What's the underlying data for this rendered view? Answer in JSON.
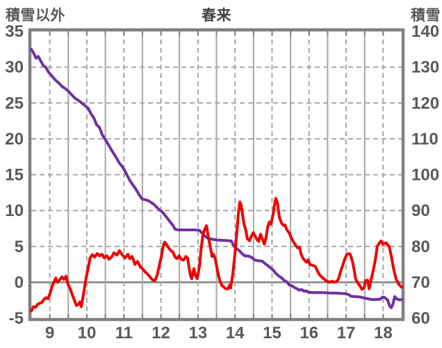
{
  "header": {
    "left_axis_title": "積雪以外",
    "title": "春来",
    "right_axis_title": "積雪"
  },
  "colors": {
    "border": "#808080",
    "gridline": "#a6a6a6",
    "zero_line": "#808080",
    "tick_label": "#595959",
    "series_snow": "#7030a0",
    "series_other": "#ee0000",
    "background": "#ffffff"
  },
  "chart_data": {
    "type": "line",
    "title": "春来",
    "left_axis": {
      "label": "積雪以外",
      "min": -5,
      "max": 35,
      "ticks": [
        35,
        30,
        25,
        20,
        15,
        10,
        5,
        0,
        -5
      ]
    },
    "right_axis": {
      "label": "積雪",
      "min": 60,
      "max": 140,
      "ticks": [
        140,
        130,
        120,
        110,
        100,
        90,
        80,
        70,
        60
      ]
    },
    "x_axis": {
      "labels": [
        "9",
        "10",
        "11",
        "12",
        "13",
        "14",
        "15",
        "16",
        "17",
        "18"
      ],
      "months": 10,
      "note": "u = months elapsed from start of month 9, range 0-10; labels centered at u=k+0.5"
    },
    "grid": {
      "h_gridlines": "dashed every 5 (left axis)",
      "v_solid": "month boundaries",
      "v_dashed": "month midpoints",
      "zero_line": "solid",
      "ticks": "top and bottom edge every half month"
    },
    "legend_position": "none",
    "series": [
      {
        "name": "積雪",
        "axis": "right",
        "color": "#7030a0",
        "points": [
          [
            0,
            135
          ],
          [
            0.06,
            134
          ],
          [
            0.13,
            132.5
          ],
          [
            0.19,
            133
          ],
          [
            0.24,
            132
          ],
          [
            0.32,
            130.5
          ],
          [
            0.39,
            130
          ],
          [
            0.47,
            128.5
          ],
          [
            0.56,
            127.5
          ],
          [
            0.66,
            126.3
          ],
          [
            0.75,
            125.5
          ],
          [
            0.84,
            124.5
          ],
          [
            0.92,
            124
          ],
          [
            1.0,
            123.3
          ],
          [
            1.09,
            122.3
          ],
          [
            1.18,
            121.3
          ],
          [
            1.26,
            120.8
          ],
          [
            1.33,
            120.3
          ],
          [
            1.41,
            119.6
          ],
          [
            1.48,
            119
          ],
          [
            1.54,
            118.5
          ],
          [
            1.61,
            117
          ],
          [
            1.69,
            115.8
          ],
          [
            1.76,
            114
          ],
          [
            1.84,
            113.2
          ],
          [
            1.91,
            111.3
          ],
          [
            2.01,
            109.6
          ],
          [
            2.08,
            108.4
          ],
          [
            2.16,
            107
          ],
          [
            2.23,
            105.8
          ],
          [
            2.31,
            104.5
          ],
          [
            2.38,
            103.2
          ],
          [
            2.46,
            102.2
          ],
          [
            2.51,
            101.4
          ],
          [
            2.59,
            99.8
          ],
          [
            2.66,
            98.4
          ],
          [
            2.74,
            97.2
          ],
          [
            2.81,
            96.2
          ],
          [
            2.89,
            94.8
          ],
          [
            2.95,
            93.8
          ],
          [
            3.0,
            93.2
          ],
          [
            3.08,
            93
          ],
          [
            3.15,
            92.8
          ],
          [
            3.23,
            92.3
          ],
          [
            3.3,
            91.8
          ],
          [
            3.38,
            91
          ],
          [
            3.45,
            90.3
          ],
          [
            3.53,
            89.7
          ],
          [
            3.6,
            88.8
          ],
          [
            3.68,
            87.8
          ],
          [
            3.75,
            86.8
          ],
          [
            3.83,
            85.8
          ],
          [
            3.88,
            84.8
          ],
          [
            3.96,
            84.6
          ],
          [
            4.03,
            84.6
          ],
          [
            4.22,
            84.6
          ],
          [
            4.41,
            84.6
          ],
          [
            4.54,
            84.5
          ],
          [
            4.62,
            83.6
          ],
          [
            4.69,
            82.8
          ],
          [
            4.77,
            82.3
          ],
          [
            4.88,
            82
          ],
          [
            5.01,
            81.8
          ],
          [
            5.16,
            81.7
          ],
          [
            5.31,
            81.6
          ],
          [
            5.4,
            81.5
          ],
          [
            5.46,
            80.3
          ],
          [
            5.53,
            79.4
          ],
          [
            5.61,
            78.9
          ],
          [
            5.69,
            78
          ],
          [
            5.76,
            77.4
          ],
          [
            5.87,
            77.3
          ],
          [
            5.97,
            76.8
          ],
          [
            6.02,
            76.3
          ],
          [
            6.12,
            76
          ],
          [
            6.23,
            75.9
          ],
          [
            6.3,
            75.3
          ],
          [
            6.38,
            74.7
          ],
          [
            6.45,
            74.1
          ],
          [
            6.53,
            73.4
          ],
          [
            6.6,
            72.5
          ],
          [
            6.68,
            71.8
          ],
          [
            6.76,
            71.2
          ],
          [
            6.83,
            70.5
          ],
          [
            6.9,
            70.1
          ],
          [
            6.96,
            69.3
          ],
          [
            7.04,
            69
          ],
          [
            7.11,
            68.5
          ],
          [
            7.19,
            68.1
          ],
          [
            7.24,
            67.8
          ],
          [
            7.3,
            68
          ],
          [
            7.36,
            67.5
          ],
          [
            7.41,
            67.6
          ],
          [
            7.49,
            67.2
          ],
          [
            7.6,
            67.1
          ],
          [
            7.75,
            67.1
          ],
          [
            7.9,
            67.1
          ],
          [
            8.05,
            67
          ],
          [
            8.2,
            67
          ],
          [
            8.35,
            66.9
          ],
          [
            8.48,
            66.8
          ],
          [
            8.56,
            66.6
          ],
          [
            8.63,
            66.1
          ],
          [
            8.74,
            66
          ],
          [
            8.87,
            65.9
          ],
          [
            8.99,
            65.6
          ],
          [
            9.08,
            65.4
          ],
          [
            9.19,
            65.2
          ],
          [
            9.3,
            65.2
          ],
          [
            9.42,
            65.3
          ],
          [
            9.49,
            65.9
          ],
          [
            9.55,
            65.7
          ],
          [
            9.62,
            65.1
          ],
          [
            9.68,
            63.3
          ],
          [
            9.72,
            62.9
          ],
          [
            9.77,
            64.1
          ],
          [
            9.81,
            66.0
          ],
          [
            9.87,
            65.3
          ],
          [
            9.94,
            65.1
          ],
          [
            10.0,
            65.2
          ]
        ]
      },
      {
        "name": "積雪以外",
        "axis": "left",
        "color": "#ee0000",
        "points": [
          [
            0,
            -4.0
          ],
          [
            0.06,
            -3.4
          ],
          [
            0.11,
            -3.5
          ],
          [
            0.17,
            -3.1
          ],
          [
            0.23,
            -2.9
          ],
          [
            0.28,
            -2.85
          ],
          [
            0.34,
            -2.4
          ],
          [
            0.39,
            -2.15
          ],
          [
            0.45,
            -2.3
          ],
          [
            0.51,
            -1.5
          ],
          [
            0.56,
            -0.6
          ],
          [
            0.62,
            0.1
          ],
          [
            0.66,
            0.6
          ],
          [
            0.71,
            0
          ],
          [
            0.77,
            0.35
          ],
          [
            0.83,
            0.75
          ],
          [
            0.88,
            0.4
          ],
          [
            0.94,
            0.85
          ],
          [
            0.99,
            -0.3
          ],
          [
            1.05,
            -0.9
          ],
          [
            1.11,
            -1.8
          ],
          [
            1.16,
            -2.45
          ],
          [
            1.22,
            -3.25
          ],
          [
            1.28,
            -3.05
          ],
          [
            1.31,
            -2.75
          ],
          [
            1.35,
            -3.4
          ],
          [
            1.41,
            -1.6
          ],
          [
            1.48,
            0.6
          ],
          [
            1.54,
            2.1
          ],
          [
            1.59,
            3.4
          ],
          [
            1.65,
            3.85
          ],
          [
            1.71,
            3.5
          ],
          [
            1.78,
            4.0
          ],
          [
            1.84,
            3.7
          ],
          [
            1.91,
            3.9
          ],
          [
            1.97,
            3.4
          ],
          [
            2.04,
            3.7
          ],
          [
            2.1,
            3.2
          ],
          [
            2.18,
            3.6
          ],
          [
            2.23,
            4.1
          ],
          [
            2.31,
            3.8
          ],
          [
            2.38,
            4.4
          ],
          [
            2.46,
            3.8
          ],
          [
            2.53,
            3.4
          ],
          [
            2.61,
            3.9
          ],
          [
            2.66,
            3.3
          ],
          [
            2.72,
            3.6
          ],
          [
            2.8,
            2.5
          ],
          [
            2.87,
            2.9
          ],
          [
            2.95,
            2.1
          ],
          [
            3.0,
            1.9
          ],
          [
            3.08,
            1.4
          ],
          [
            3.13,
            1.2
          ],
          [
            3.21,
            0.7
          ],
          [
            3.28,
            0.3
          ],
          [
            3.34,
            0.25
          ],
          [
            3.4,
            1.0
          ],
          [
            3.45,
            2.2
          ],
          [
            3.51,
            3.6
          ],
          [
            3.56,
            5.0
          ],
          [
            3.6,
            5.6
          ],
          [
            3.66,
            5.2
          ],
          [
            3.72,
            4.7
          ],
          [
            3.77,
            4.4
          ],
          [
            3.83,
            4.2
          ],
          [
            3.88,
            3.5
          ],
          [
            3.94,
            3.3
          ],
          [
            3.99,
            3.7
          ],
          [
            4.05,
            3.2
          ],
          [
            4.11,
            3.1
          ],
          [
            4.17,
            3.6
          ],
          [
            4.22,
            3.4
          ],
          [
            4.26,
            2.0
          ],
          [
            4.3,
            0.9
          ],
          [
            4.33,
            0.5
          ],
          [
            4.39,
            1.9
          ],
          [
            4.43,
            1.0
          ],
          [
            4.48,
            0.5
          ],
          [
            4.54,
            2.2
          ],
          [
            4.58,
            4.4
          ],
          [
            4.63,
            6.5
          ],
          [
            4.67,
            7.2
          ],
          [
            4.73,
            7.9
          ],
          [
            4.78,
            6.3
          ],
          [
            4.82,
            5.3
          ],
          [
            4.88,
            3.6
          ],
          [
            4.92,
            3.9
          ],
          [
            4.97,
            3.2
          ],
          [
            5.03,
            1.5
          ],
          [
            5.08,
            0.4
          ],
          [
            5.14,
            -0.4
          ],
          [
            5.2,
            -0.7
          ],
          [
            5.25,
            -0.9
          ],
          [
            5.31,
            -0.9
          ],
          [
            5.35,
            -0.4
          ],
          [
            5.38,
            -0.8
          ],
          [
            5.44,
            1.2
          ],
          [
            5.5,
            4.0
          ],
          [
            5.55,
            7.0
          ],
          [
            5.59,
            9.5
          ],
          [
            5.63,
            11.2
          ],
          [
            5.67,
            10.7
          ],
          [
            5.7,
            9.6
          ],
          [
            5.74,
            8.2
          ],
          [
            5.8,
            7.1
          ],
          [
            5.83,
            6.1
          ],
          [
            5.89,
            5.8
          ],
          [
            5.93,
            6.3
          ],
          [
            5.99,
            6.9
          ],
          [
            6.04,
            6.5
          ],
          [
            6.1,
            5.9
          ],
          [
            6.14,
            5.7
          ],
          [
            6.19,
            6.7
          ],
          [
            6.25,
            5.9
          ],
          [
            6.29,
            5.3
          ],
          [
            6.34,
            6.3
          ],
          [
            6.38,
            7.7
          ],
          [
            6.43,
            8.4
          ],
          [
            6.47,
            8.1
          ],
          [
            6.53,
            9.5
          ],
          [
            6.57,
            10.9
          ],
          [
            6.6,
            11.7
          ],
          [
            6.64,
            11.2
          ],
          [
            6.7,
            9.0
          ],
          [
            6.76,
            8.2
          ],
          [
            6.81,
            7.9
          ],
          [
            6.85,
            8.0
          ],
          [
            6.9,
            7.3
          ],
          [
            6.96,
            6.9
          ],
          [
            7.02,
            6.2
          ],
          [
            7.07,
            5.7
          ],
          [
            7.13,
            5.2
          ],
          [
            7.19,
            4.8
          ],
          [
            7.24,
            4.9
          ],
          [
            7.28,
            4.0
          ],
          [
            7.34,
            3.3
          ],
          [
            7.39,
            3.0
          ],
          [
            7.43,
            2.8
          ],
          [
            7.47,
            3.1
          ],
          [
            7.52,
            2.5
          ],
          [
            7.6,
            2.35
          ],
          [
            7.67,
            2.2
          ],
          [
            7.73,
            1.5
          ],
          [
            7.79,
            1.0
          ],
          [
            7.86,
            0.65
          ],
          [
            7.94,
            0.3
          ],
          [
            7.99,
            0.1
          ],
          [
            8.07,
            0
          ],
          [
            8.12,
            0.15
          ],
          [
            8.18,
            0
          ],
          [
            8.24,
            0.1
          ],
          [
            8.29,
            0.4
          ],
          [
            8.35,
            1.5
          ],
          [
            8.41,
            2.4
          ],
          [
            8.46,
            3.2
          ],
          [
            8.52,
            3.9
          ],
          [
            8.57,
            4.0
          ],
          [
            8.61,
            3.9
          ],
          [
            8.67,
            2.9
          ],
          [
            8.72,
            1.6
          ],
          [
            8.76,
            0.4
          ],
          [
            8.82,
            -0.15
          ],
          [
            8.87,
            -0.5
          ],
          [
            8.93,
            -1.0
          ],
          [
            8.99,
            -0.7
          ],
          [
            9.02,
            0.2
          ],
          [
            9.08,
            0.3
          ],
          [
            9.12,
            -0.9
          ],
          [
            9.17,
            0.3
          ],
          [
            9.23,
            1.6
          ],
          [
            9.29,
            3.2
          ],
          [
            9.34,
            5.0
          ],
          [
            9.4,
            5.5
          ],
          [
            9.44,
            5.75
          ],
          [
            9.49,
            5.3
          ],
          [
            9.53,
            5.4
          ],
          [
            9.59,
            5.5
          ],
          [
            9.62,
            5.2
          ],
          [
            9.66,
            5.0
          ],
          [
            9.72,
            3.65
          ],
          [
            9.77,
            2.2
          ],
          [
            9.81,
            1.2
          ],
          [
            9.85,
            0.45
          ],
          [
            9.9,
            -0.1
          ],
          [
            9.94,
            -0.4
          ],
          [
            10.0,
            -0.7
          ]
        ]
      }
    ]
  }
}
